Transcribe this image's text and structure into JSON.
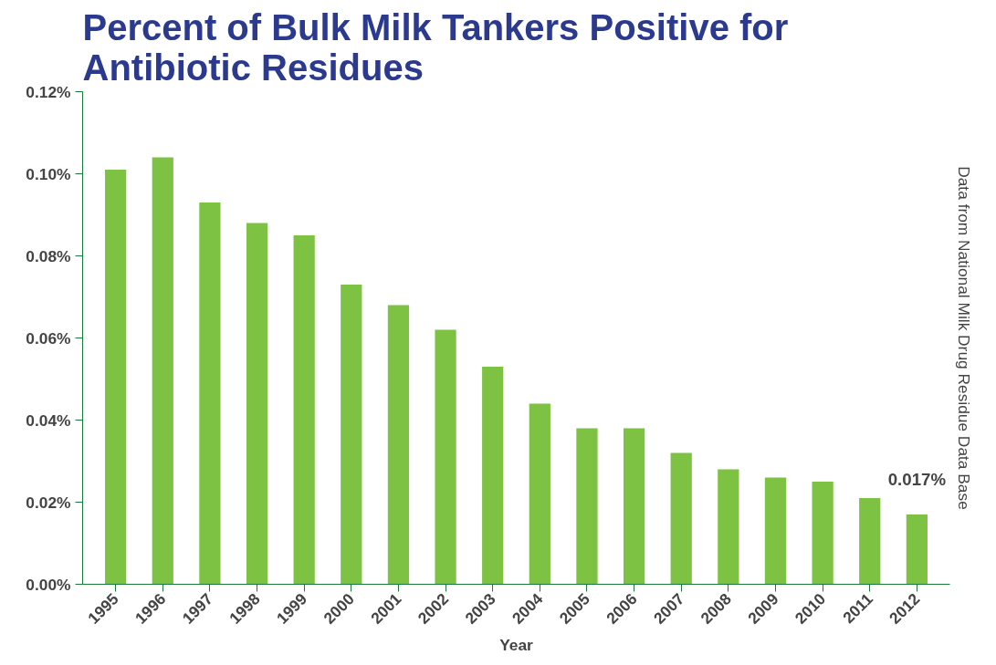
{
  "chart_data": {
    "type": "bar",
    "title": "Percent of Bulk Milk Tankers Positive for\nAntibiotic Residues",
    "xlabel": "Year",
    "categories": [
      "1995",
      "1996",
      "1997",
      "1998",
      "1999",
      "2000",
      "2001",
      "2002",
      "2003",
      "2004",
      "2005",
      "2006",
      "2007",
      "2008",
      "2009",
      "2010",
      "2011",
      "2012"
    ],
    "values": [
      0.101,
      0.104,
      0.093,
      0.088,
      0.085,
      0.073,
      0.068,
      0.062,
      0.053,
      0.044,
      0.038,
      0.038,
      0.032,
      0.028,
      0.026,
      0.025,
      0.021,
      0.017
    ],
    "value_labels": [
      null,
      null,
      null,
      null,
      null,
      null,
      null,
      null,
      null,
      null,
      null,
      null,
      null,
      null,
      null,
      null,
      null,
      "0.017%"
    ],
    "color": "#7dc242",
    "ylim": [
      0,
      0.12
    ],
    "yticks": [
      {
        "value": 0,
        "label": "0.00%"
      },
      {
        "value": 0.02,
        "label": "0.02%"
      },
      {
        "value": 0.04,
        "label": "0.04%"
      },
      {
        "value": 0.06,
        "label": "0.06%"
      },
      {
        "value": 0.08,
        "label": "0.08%"
      },
      {
        "value": 0.1,
        "label": "0.10%"
      },
      {
        "value": 0.12,
        "label": "0.12%"
      }
    ],
    "grid": false,
    "annotations": [
      "Data from National Milk Drug Residue Data Base"
    ]
  }
}
